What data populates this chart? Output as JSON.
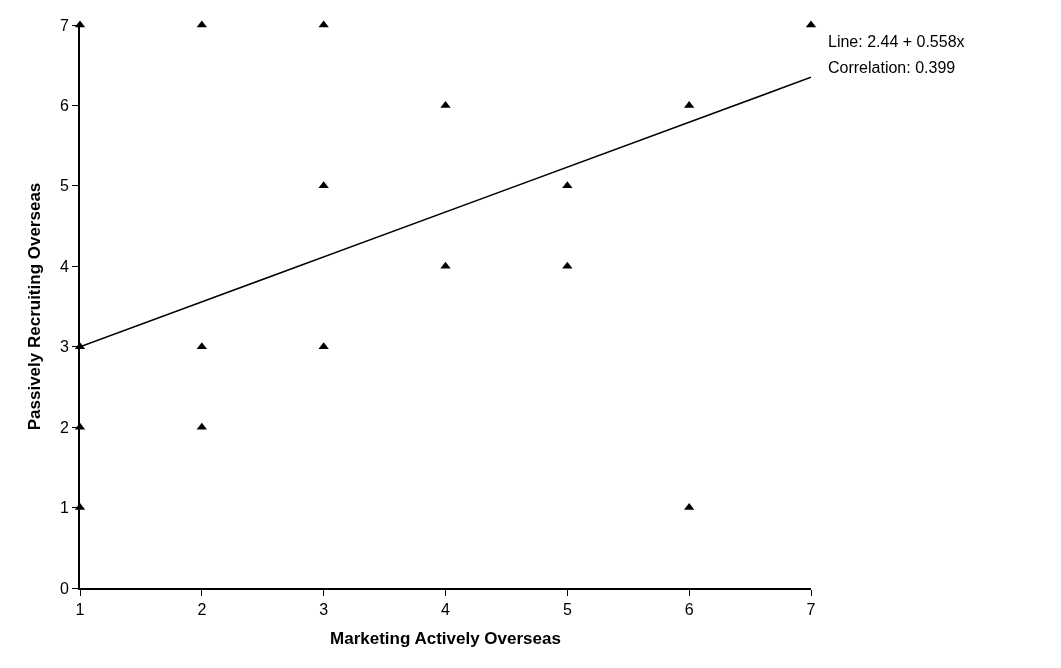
{
  "chart_data": {
    "type": "scatter",
    "xlabel": "Marketing Actively Overseas",
    "ylabel": "Passively Recruiting Overseas",
    "xlim": [
      1,
      7
    ],
    "xticks": [
      1,
      2,
      3,
      4,
      5,
      6,
      7
    ],
    "ylim": [
      0,
      7
    ],
    "yticks": [
      0,
      1,
      2,
      3,
      4,
      5,
      6,
      7
    ],
    "marker": "triangle",
    "series": [
      {
        "color": "#000000",
        "x": [
          1,
          1,
          1,
          1,
          2,
          2,
          2,
          3,
          3,
          3,
          4,
          4,
          5,
          5,
          6,
          6,
          7
        ],
        "values": [
          7,
          3,
          2,
          1,
          7,
          3,
          2,
          7,
          5,
          3,
          6,
          4,
          5,
          4,
          6,
          1,
          7
        ]
      },
      {
        "type": "line",
        "marker": "none",
        "color": "#000000",
        "x": [
          1,
          7
        ],
        "values": [
          3.0,
          6.35
        ]
      }
    ],
    "annotations": [
      "Line: 2.44 + 0.558x",
      "Correlation: 0.399"
    ]
  }
}
